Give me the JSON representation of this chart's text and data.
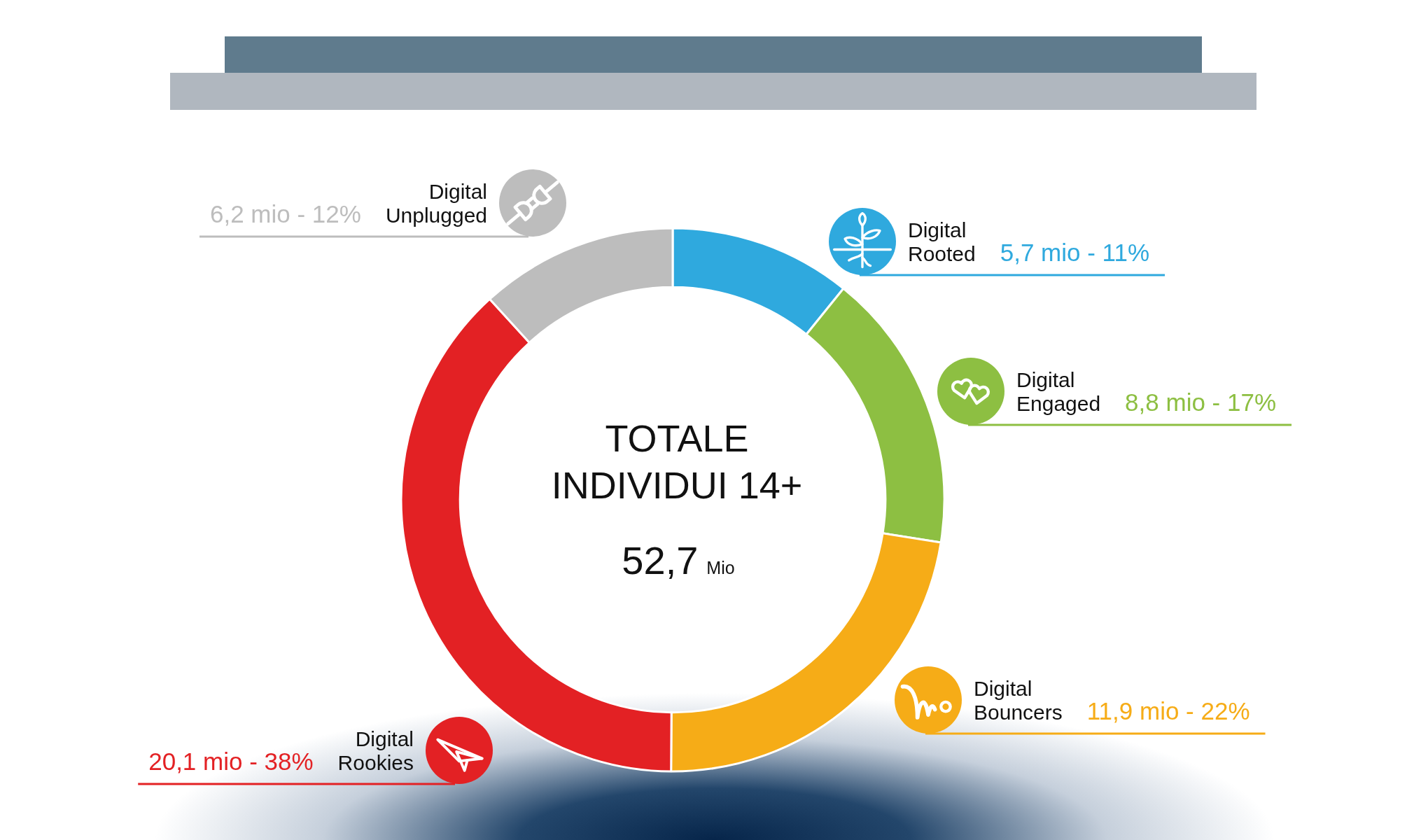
{
  "chart_data": {
    "type": "donut",
    "categories": [
      "Digital Rooted",
      "Digital Engaged",
      "Digital Bouncers",
      "Digital Rookies",
      "Digital Unplugged"
    ],
    "values": [
      5.7,
      8.8,
      11.9,
      20.1,
      6.2
    ],
    "colors": [
      "#2fa9de",
      "#8dbf42",
      "#f6ac17",
      "#e32124",
      "#bdbdbd"
    ],
    "value_labels": [
      "5,7 mio - 11%",
      "8,8 mio - 17%",
      "11,9 mio - 22%",
      "20,1 mio - 38%",
      "6,2 mio - 12%"
    ],
    "annotations": [
      "TOTALE INDIVIDUI 14+",
      "52,7",
      "Mio"
    ]
  }
}
